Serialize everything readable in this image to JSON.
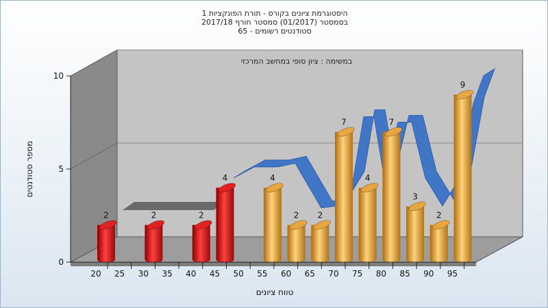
{
  "chart_data": {
    "type": "bar",
    "title_lines": [
      "היסטוגרמת ציונים בקורס - תורת הפונקציות 1",
      "בסמסטר  (01/2017)  סמסטר חורף  2017/18",
      "סטודנטים רשומים - 65"
    ],
    "subtitle": "במשימה : ציון סופי במחשב המרכזי",
    "xlabel": "טווח ציונים",
    "ylabel": "מספר סטודנטים",
    "ylim": [
      0,
      10
    ],
    "y_ticks": [
      "0",
      "5",
      "10"
    ],
    "x_ticks": [
      "20",
      "25",
      "30",
      "35",
      "40",
      "45",
      "50",
      "55",
      "60",
      "65",
      "70",
      "75",
      "80",
      "85",
      "90",
      "95"
    ],
    "categories": [
      "20",
      "30",
      "40",
      "45",
      "55",
      "60",
      "65",
      "70",
      "75",
      "80",
      "85",
      "90",
      "95"
    ],
    "values": [
      2,
      2,
      2,
      4,
      4,
      2,
      2,
      7,
      4,
      7,
      3,
      2,
      9
    ],
    "bar_colors": [
      "#e12020",
      "#e12020",
      "#e12020",
      "#e12020",
      "#e8a640",
      "#e8a640",
      "#e8a640",
      "#e8a640",
      "#e8a640",
      "#e8a640",
      "#e8a640",
      "#e8a640",
      "#e8a640"
    ],
    "curve_color": "#3a72c8",
    "grid": true
  }
}
